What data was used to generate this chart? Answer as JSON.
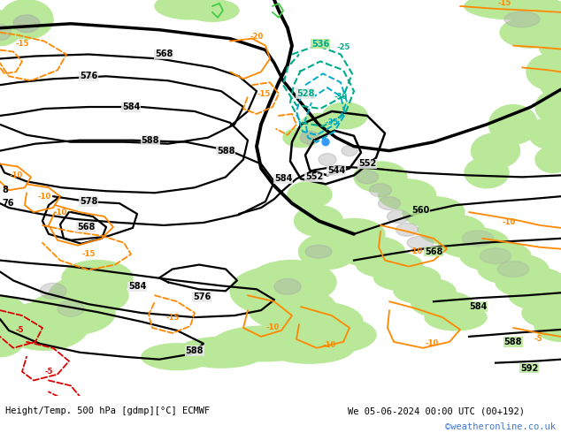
{
  "title_left": "Height/Temp. 500 hPa [gdmp][°C] ECMWF",
  "title_right": "We 05-06-2024 00:00 UTC (00+192)",
  "credit": "©weatheronline.co.uk",
  "sea_color": "#e8e8e8",
  "land_color": "#b8e898",
  "land_color2": "#a8d888",
  "figure_bg": "#ffffff",
  "bottom_bar_color": "#ffffff",
  "title_color": "#000000",
  "credit_color": "#4477cc",
  "contour_color": "#000000",
  "orange_color": "#ff8800",
  "red_color": "#dd0000",
  "cyan_color": "#00aacc",
  "teal_color": "#00aa88",
  "gray_land": "#aaaaaa",
  "figwidth": 6.34,
  "figheight": 4.9,
  "dpi": 100
}
